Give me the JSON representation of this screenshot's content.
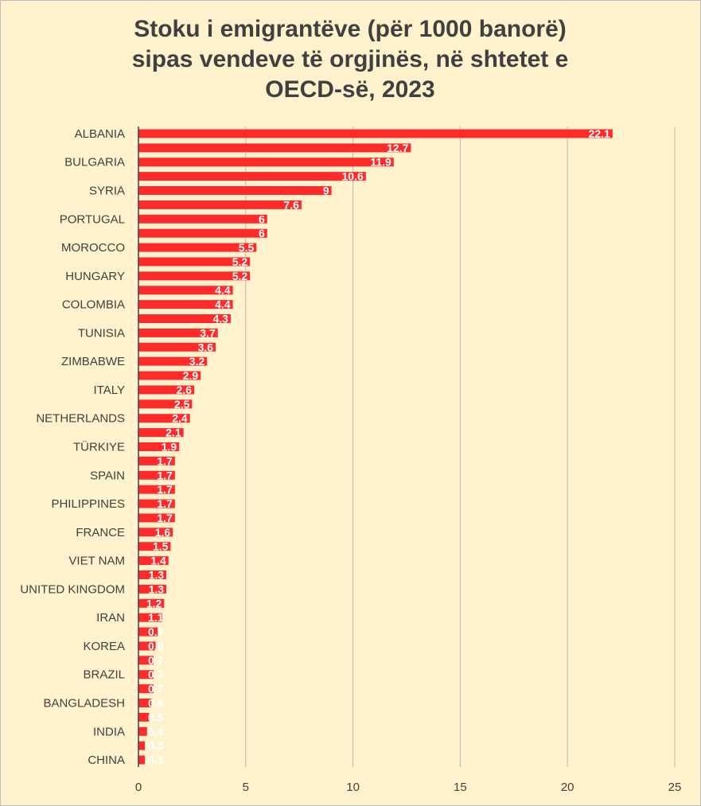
{
  "chart_data": {
    "type": "bar",
    "orientation": "horizontal",
    "title_lines": [
      "Stoku i emigrantëve (për 1000 banorë)",
      "sipas vendeve të orgjinës, në shtetet e",
      "OECD-së, 2023"
    ],
    "categories": [
      "ALBANIA",
      "",
      "BULGARIA",
      "",
      "SYRIA",
      "",
      "PORTUGAL",
      "",
      "MOROCCO",
      "",
      "HUNGARY",
      "",
      "COLOMBIA",
      "",
      "TUNISIA",
      "",
      "ZIMBABWE",
      "",
      "ITALY",
      "",
      "NETHERLANDS",
      "",
      "TÜRKIYE",
      "",
      "SPAIN",
      "",
      "PHILIPPINES",
      "",
      "FRANCE",
      "",
      "VIET NAM",
      "",
      "UNITED KINGDOM",
      "",
      "IRAN",
      "",
      "KOREA",
      "",
      "BRAZIL",
      "",
      "BANGLADESH",
      "",
      "INDIA",
      "",
      "CHINA"
    ],
    "values": [
      22.1,
      12.7,
      11.9,
      10.6,
      9,
      7.6,
      6,
      6,
      5.5,
      5.2,
      5.2,
      4.4,
      4.4,
      4.3,
      3.7,
      3.6,
      3.2,
      2.9,
      2.6,
      2.5,
      2.4,
      2.1,
      1.9,
      1.7,
      1.7,
      1.7,
      1.7,
      1.7,
      1.6,
      1.5,
      1.4,
      1.3,
      1.3,
      1.2,
      1.1,
      0.9,
      0.8,
      0.7,
      0.7,
      0.7,
      0.6,
      0.5,
      0.4,
      0.3,
      0.3
    ],
    "data_labels": [
      "22.1",
      "12.7",
      "11.9",
      "10.6",
      "9",
      "7.6",
      "6",
      "6",
      "5.5",
      "5.2",
      "5.2",
      "4.4",
      "4.4",
      "4.3",
      "3.7",
      "3.6",
      "3.2",
      "2.9",
      "2.6",
      "2.5",
      "2.4",
      "2.1",
      "1.9",
      "1.7",
      "1.7",
      "1.7",
      "1.7",
      "1.7",
      "1.6",
      "1.5",
      "1.4",
      "1.3",
      "1.3",
      "1.2",
      "1.1",
      "0.9",
      "0.8",
      "0.7",
      "0.7",
      "0.7",
      "0.6",
      "0.5",
      "0.4",
      "0.3",
      "0.3"
    ],
    "xlim": [
      0,
      25
    ],
    "xticks": [
      0,
      5,
      10,
      15,
      20,
      25
    ],
    "grid": true,
    "legend": "none",
    "colors": {
      "bar": "#ff2a2a",
      "background": "#fff2cc",
      "text": "#404040",
      "label": "#ffffff"
    }
  }
}
